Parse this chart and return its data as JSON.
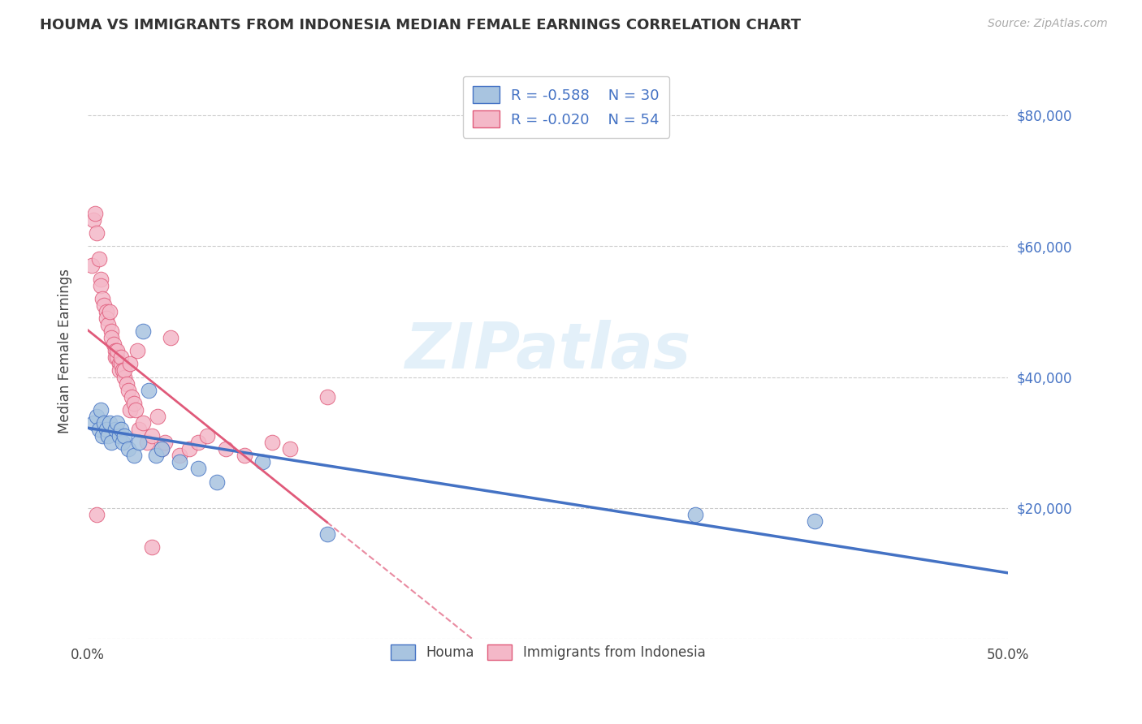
{
  "title": "HOUMA VS IMMIGRANTS FROM INDONESIA MEDIAN FEMALE EARNINGS CORRELATION CHART",
  "source": "Source: ZipAtlas.com",
  "xlabel": "",
  "ylabel": "Median Female Earnings",
  "xlim": [
    0.0,
    0.5
  ],
  "ylim": [
    0,
    88000
  ],
  "yticks": [
    0,
    20000,
    40000,
    60000,
    80000
  ],
  "ytick_labels": [
    "",
    "$20,000",
    "$40,000",
    "$60,000",
    "$80,000"
  ],
  "xticks": [
    0.0,
    0.1,
    0.2,
    0.3,
    0.4,
    0.5
  ],
  "xtick_labels": [
    "0.0%",
    "",
    "",
    "",
    "",
    "50.0%"
  ],
  "houma_color": "#a8c4e0",
  "indonesia_color": "#f4b8c8",
  "houma_line_color": "#4472c4",
  "indonesia_line_color": "#e05a7a",
  "houma_R": -0.588,
  "houma_N": 30,
  "indonesia_R": -0.02,
  "indonesia_N": 54,
  "watermark": "ZIPatlas",
  "legend_label_1": "Houma",
  "legend_label_2": "Immigrants from Indonesia",
  "houma_x": [
    0.003,
    0.005,
    0.006,
    0.007,
    0.008,
    0.009,
    0.01,
    0.011,
    0.012,
    0.013,
    0.015,
    0.016,
    0.017,
    0.018,
    0.019,
    0.02,
    0.022,
    0.025,
    0.028,
    0.03,
    0.033,
    0.037,
    0.04,
    0.05,
    0.06,
    0.07,
    0.095,
    0.13,
    0.33,
    0.395
  ],
  "houma_y": [
    33000,
    34000,
    32000,
    35000,
    31000,
    33000,
    32000,
    31000,
    33000,
    30000,
    32000,
    33000,
    31000,
    32000,
    30000,
    31000,
    29000,
    28000,
    30000,
    47000,
    38000,
    28000,
    29000,
    27000,
    26000,
    24000,
    27000,
    16000,
    19000,
    18000
  ],
  "indonesia_x": [
    0.002,
    0.003,
    0.004,
    0.005,
    0.006,
    0.007,
    0.007,
    0.008,
    0.009,
    0.01,
    0.01,
    0.011,
    0.012,
    0.013,
    0.013,
    0.014,
    0.015,
    0.015,
    0.016,
    0.016,
    0.017,
    0.017,
    0.018,
    0.018,
    0.019,
    0.02,
    0.02,
    0.021,
    0.022,
    0.023,
    0.023,
    0.024,
    0.025,
    0.026,
    0.027,
    0.028,
    0.03,
    0.032,
    0.035,
    0.038,
    0.04,
    0.042,
    0.045,
    0.05,
    0.055,
    0.06,
    0.065,
    0.075,
    0.085,
    0.1,
    0.11,
    0.13,
    0.005,
    0.035
  ],
  "indonesia_y": [
    57000,
    64000,
    65000,
    62000,
    58000,
    55000,
    54000,
    52000,
    51000,
    50000,
    49000,
    48000,
    50000,
    47000,
    46000,
    45000,
    44000,
    43000,
    43000,
    44000,
    42000,
    41000,
    42000,
    43000,
    41000,
    40000,
    41000,
    39000,
    38000,
    42000,
    35000,
    37000,
    36000,
    35000,
    44000,
    32000,
    33000,
    30000,
    31000,
    34000,
    29000,
    30000,
    46000,
    28000,
    29000,
    30000,
    31000,
    29000,
    28000,
    30000,
    29000,
    37000,
    19000,
    14000
  ]
}
